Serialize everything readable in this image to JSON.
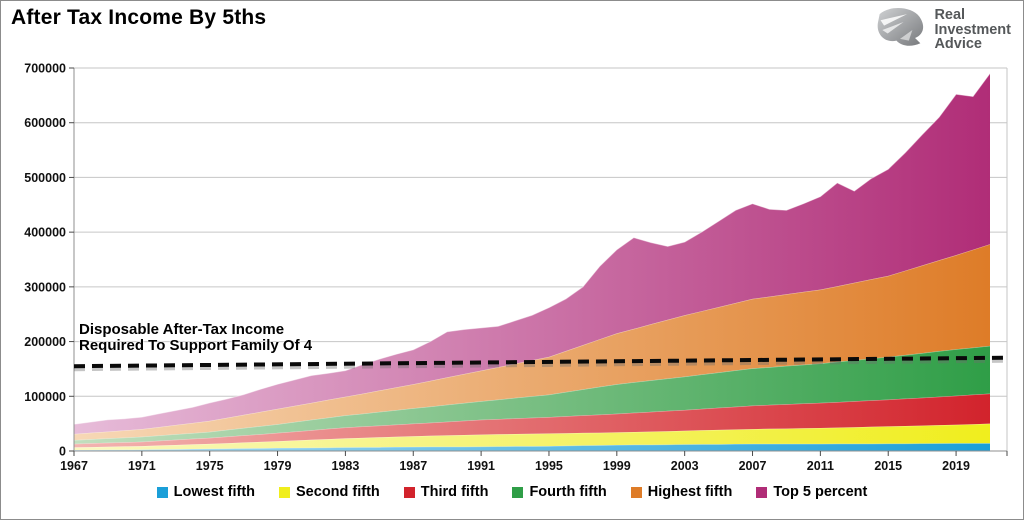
{
  "header": {
    "title": "After Tax Income By 5ths",
    "logo": {
      "line1": "Real",
      "line2": "Investment",
      "line3": "Advice"
    }
  },
  "annotation": {
    "line1": "Disposable After-Tax Income",
    "line2": "Required To Support Family Of 4"
  },
  "chart_data": {
    "type": "area",
    "stacked": true,
    "title": "After Tax Income By 5ths",
    "xlabel": "",
    "ylabel": "",
    "grid": "horizontal",
    "legend_position": "bottom",
    "ylim": [
      0,
      700000
    ],
    "y_ticks": [
      0,
      100000,
      200000,
      300000,
      400000,
      500000,
      600000,
      700000
    ],
    "y_tick_labels": [
      "0",
      "100000",
      "200000",
      "300000",
      "400000",
      "500000",
      "600000",
      "700000"
    ],
    "x_first_year": 1967,
    "x_last_year": 2021,
    "x_ticks": [
      1967,
      1971,
      1975,
      1979,
      1983,
      1987,
      1991,
      1995,
      1999,
      2003,
      2007,
      2011,
      2015,
      2019
    ],
    "x": [
      1967,
      1968,
      1969,
      1970,
      1971,
      1972,
      1973,
      1974,
      1975,
      1976,
      1977,
      1978,
      1979,
      1980,
      1981,
      1982,
      1983,
      1984,
      1985,
      1986,
      1987,
      1988,
      1989,
      1990,
      1991,
      1992,
      1993,
      1994,
      1995,
      1996,
      1997,
      1998,
      1999,
      2000,
      2001,
      2002,
      2003,
      2004,
      2005,
      2006,
      2007,
      2008,
      2009,
      2010,
      2011,
      2012,
      2013,
      2014,
      2015,
      2016,
      2017,
      2018,
      2019,
      2020,
      2021
    ],
    "series": [
      {
        "name": "Lowest fifth",
        "color": "#1B9FD8",
        "color_light": "#AEDDF2",
        "values": [
          1800,
          2000,
          2150,
          2300,
          2500,
          2900,
          3250,
          3600,
          4000,
          4400,
          4750,
          5100,
          5500,
          5750,
          6000,
          6250,
          6500,
          6750,
          7000,
          7250,
          7500,
          7600,
          7750,
          7900,
          8000,
          8250,
          8500,
          8750,
          9000,
          9500,
          10000,
          10500,
          11000,
          11250,
          11500,
          11750,
          12000,
          12250,
          12500,
          12750,
          13000,
          13000,
          13000,
          13000,
          13000,
          13100,
          13250,
          13400,
          13500,
          13600,
          13750,
          13900,
          14000,
          14000,
          14000
        ]
      },
      {
        "name": "Second fifth",
        "color": "#F0EE1D",
        "color_light": "#FAF8C2",
        "values": [
          4700,
          5150,
          5600,
          6050,
          6500,
          7100,
          7750,
          8400,
          9000,
          9900,
          10750,
          11600,
          12500,
          13500,
          14500,
          15500,
          16500,
          17250,
          18000,
          18750,
          19500,
          20100,
          20750,
          21400,
          22000,
          22250,
          22500,
          22750,
          23000,
          23000,
          23000,
          23000,
          23000,
          23500,
          24000,
          24500,
          25000,
          25500,
          26000,
          26500,
          27000,
          27500,
          28000,
          28500,
          29000,
          29600,
          30250,
          30900,
          31500,
          32100,
          32750,
          33400,
          34000,
          35000,
          36000
        ]
      },
      {
        "name": "Third fifth",
        "color": "#D2232C",
        "color_light": "#F3B5B1",
        "values": [
          6500,
          6900,
          7250,
          7600,
          8000,
          8750,
          9500,
          10250,
          11000,
          12000,
          13000,
          14000,
          15000,
          16250,
          17500,
          18750,
          20000,
          20750,
          21500,
          22250,
          23000,
          24000,
          25000,
          26000,
          27000,
          27750,
          28500,
          29250,
          30000,
          31000,
          32000,
          33000,
          34000,
          35000,
          36000,
          37000,
          38000,
          39250,
          40500,
          41750,
          43000,
          43750,
          44500,
          45250,
          46000,
          46750,
          47500,
          48250,
          49000,
          50000,
          51000,
          52000,
          53000,
          54000,
          55000
        ]
      },
      {
        "name": "Fourth fifth",
        "color": "#2F9E47",
        "color_light": "#C2DFBE",
        "values": [
          7000,
          7500,
          8000,
          8500,
          9000,
          9500,
          10000,
          10500,
          11000,
          12250,
          13500,
          14750,
          16000,
          17500,
          19000,
          20500,
          22000,
          23500,
          25000,
          26500,
          28000,
          29500,
          31000,
          32500,
          34000,
          35750,
          37500,
          39250,
          41000,
          44250,
          47500,
          50750,
          54000,
          55750,
          57500,
          59250,
          61000,
          62750,
          64500,
          66250,
          68000,
          69000,
          70000,
          71000,
          72000,
          73500,
          75000,
          76500,
          78000,
          79750,
          81500,
          83250,
          85000,
          86000,
          87000
        ]
      },
      {
        "name": "Highest fifth",
        "color": "#DE7C28",
        "color_light": "#F7D8B6",
        "values": [
          11000,
          11750,
          12500,
          13250,
          14000,
          15500,
          17000,
          18500,
          20000,
          22000,
          24000,
          26000,
          28000,
          29500,
          31000,
          32500,
          34000,
          36500,
          39000,
          41500,
          44000,
          47000,
          50000,
          53000,
          56000,
          59250,
          62500,
          65750,
          69000,
          75000,
          81000,
          87000,
          93000,
          97750,
          102500,
          107250,
          112000,
          115750,
          119500,
          123250,
          127000,
          129000,
          131000,
          133000,
          135000,
          138250,
          141500,
          144750,
          148000,
          154000,
          160000,
          166000,
          172000,
          179000,
          186000
        ]
      },
      {
        "name": "Top 5 percent",
        "color": "#B02D77",
        "color_light": "#E7BCD9",
        "values": [
          18000,
          19750,
          21500,
          21250,
          22000,
          24250,
          26500,
          28750,
          33000,
          34500,
          37000,
          41500,
          45000,
          47500,
          50000,
          48500,
          48000,
          53250,
          57500,
          60750,
          63000,
          71750,
          83500,
          81250,
          78000,
          74750,
          78500,
          82250,
          90000,
          95250,
          106500,
          133750,
          153000,
          166750,
          149500,
          134250,
          134000,
          144500,
          157000,
          169500,
          174000,
          159750,
          153500,
          161250,
          170000,
          188750,
          167500,
          184250,
          195000,
          215500,
          239000,
          261500,
          294000,
          280000,
          312000
        ]
      }
    ],
    "reference_line": {
      "label": "Disposable After-Tax Income Required To Support Family Of 4",
      "style": "dashed",
      "color": "#0a0a0a",
      "start_value": 155000,
      "end_value": 170500
    }
  }
}
